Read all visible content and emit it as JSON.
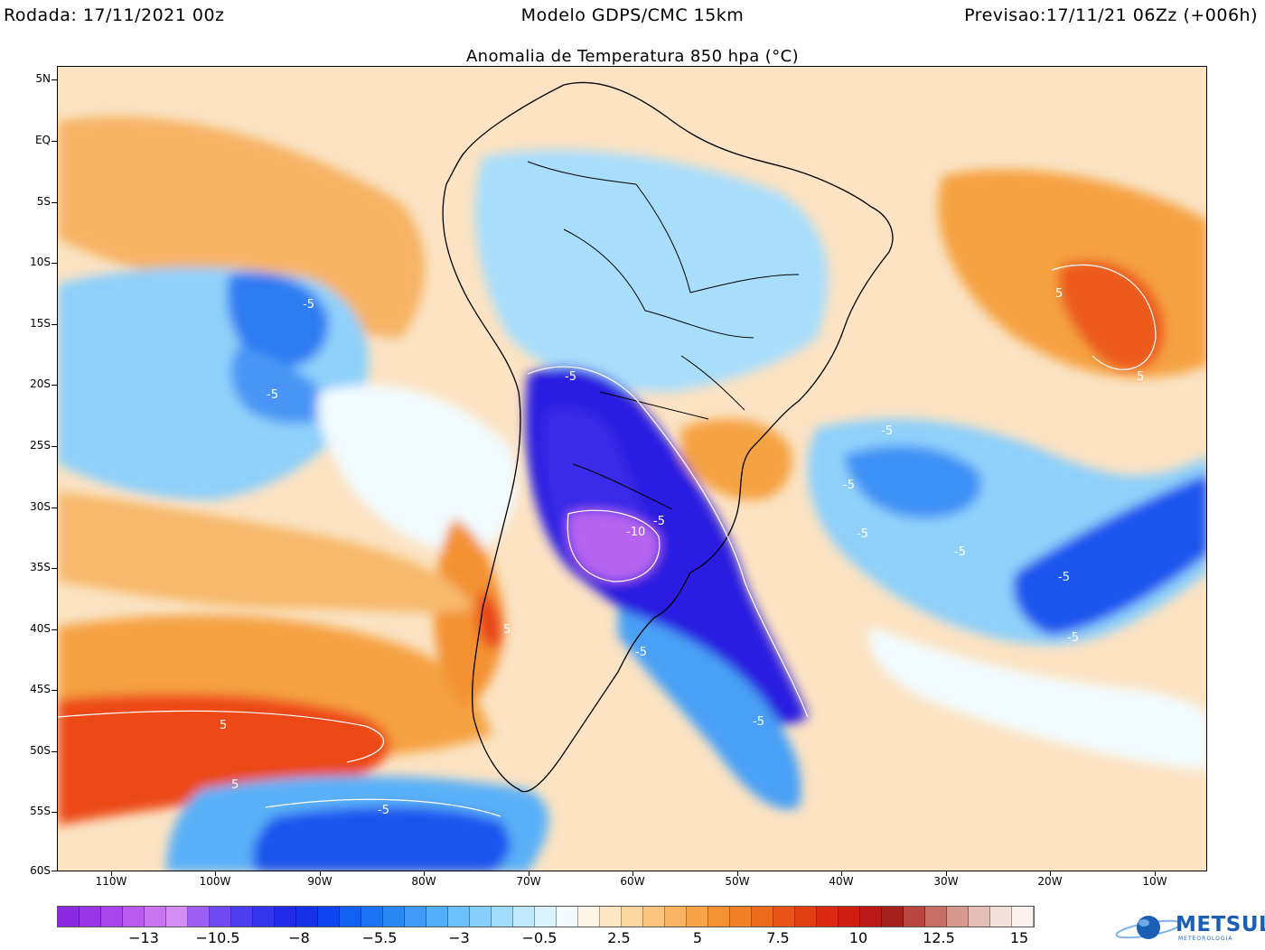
{
  "header": {
    "left": "Rodada: 17/11/2021 00z",
    "center": "Modelo GDPS/CMC 15km",
    "right": "Previsao:17/11/21 06Zz (+006h)"
  },
  "map": {
    "title": "Anomalia de Temperatura 850 hpa (°C)",
    "lat_labels": [
      "5N",
      "EQ",
      "5S",
      "10S",
      "15S",
      "20S",
      "25S",
      "30S",
      "35S",
      "40S",
      "45S",
      "50S",
      "55S",
      "60S"
    ],
    "lon_labels": [
      "110W",
      "100W",
      "90W",
      "80W",
      "70W",
      "60W",
      "50W",
      "40W",
      "30W",
      "20W",
      "10W"
    ],
    "contour_labels": [
      {
        "text": "-5",
        "region": "pacific-tropical"
      },
      {
        "text": "-5",
        "region": "pacific-subtropical"
      },
      {
        "text": "-5",
        "region": "andes-north"
      },
      {
        "text": "-10",
        "region": "argentina-core"
      },
      {
        "text": "-5",
        "region": "uruguay"
      },
      {
        "text": "-5",
        "region": "patagonia"
      },
      {
        "text": "-5",
        "region": "south-atlantic-tongue"
      },
      {
        "text": "5",
        "region": "chile-coast"
      },
      {
        "text": "5",
        "region": "pacific-south-band"
      },
      {
        "text": "5",
        "region": "pacific-south-band-lower"
      },
      {
        "text": "-5",
        "region": "southern-ocean"
      },
      {
        "text": "-5",
        "region": "atlantic-25s"
      },
      {
        "text": "-5",
        "region": "atlantic-29s"
      },
      {
        "text": "-5",
        "region": "atlantic-32s"
      },
      {
        "text": "-5",
        "region": "atlantic-34s"
      },
      {
        "text": "-5",
        "region": "atlantic-36s"
      },
      {
        "text": "-5",
        "region": "atlantic-41s"
      },
      {
        "text": "5",
        "region": "atlantic-tropical-warm"
      },
      {
        "text": "5",
        "region": "atlantic-tropical-warm-south"
      }
    ],
    "colors": {
      "purple": "#a23ee8",
      "deep_blue": "#2a1fe0",
      "blue": "#1e6ff0",
      "light_blue": "#8fd0fa",
      "pale": "#e9f7ff",
      "orange": "#f5a640",
      "light_orange": "#fbd7a3",
      "red": "#ee3b16"
    }
  },
  "colorbar": {
    "colors": [
      "#8a2be2",
      "#9a35e6",
      "#a845ea",
      "#b85bee",
      "#c975f0",
      "#d28cf2",
      "#9d5ef3",
      "#6f4af0",
      "#4c3ef0",
      "#3434ec",
      "#2229e8",
      "#1532e8",
      "#0d46f0",
      "#1260f2",
      "#1b74f2",
      "#2a88f4",
      "#3f9bf6",
      "#55aef8",
      "#6cc0fa",
      "#86cffb",
      "#a2dcfc",
      "#bfe8fd",
      "#dbf3fe",
      "#f3fbff",
      "#fff5e6",
      "#fde6c4",
      "#fcd6a0",
      "#fbc57f",
      "#f9b461",
      "#f6a247",
      "#f39133",
      "#f07f25",
      "#ec6a1c",
      "#e85417",
      "#e33f14",
      "#dc2a12",
      "#cf1d12",
      "#bb1a16",
      "#a5211c",
      "#b8453f",
      "#c76e66",
      "#d69990",
      "#e4bfb7",
      "#f2e0da",
      "#fbf1ee"
    ],
    "labels": [
      "−13",
      "−10.5",
      "−8",
      "−5.5",
      "−3",
      "−0.5",
      "2.5",
      "5",
      "7.5",
      "10",
      "12.5",
      "15"
    ]
  },
  "logo": {
    "name": "METSUL",
    "subtitle": "METEOROLOGIA"
  }
}
